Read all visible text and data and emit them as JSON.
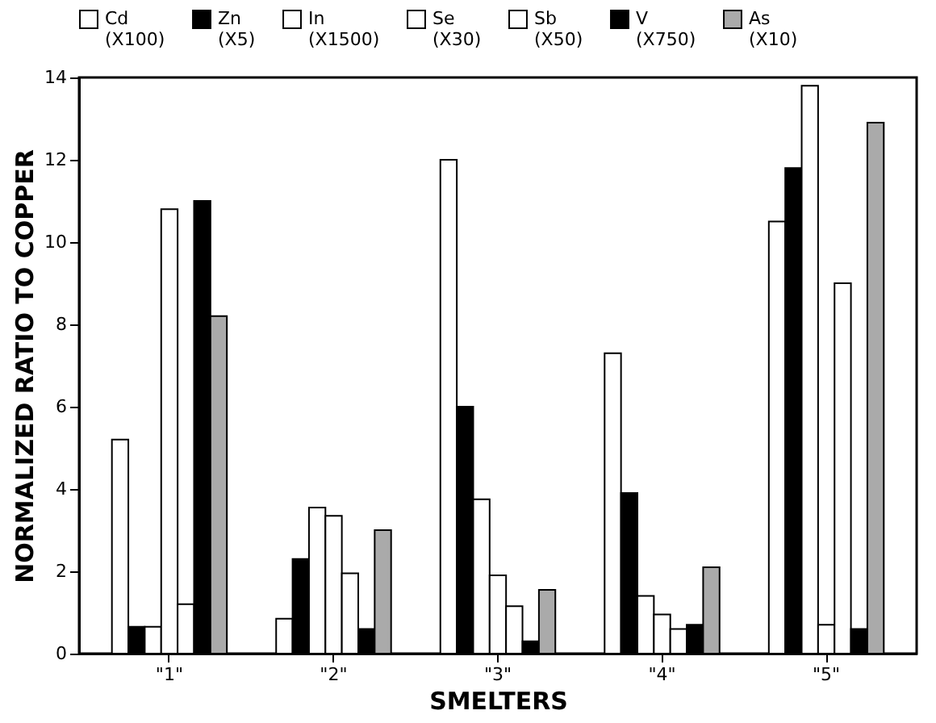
{
  "chart_data": {
    "type": "bar",
    "xlabel": "SMELTERS",
    "ylabel": "NORMALIZED RATIO TO COPPER",
    "categories": [
      "\"1\"",
      "\"2\"",
      "\"3\"",
      "\"4\"",
      "\"5\""
    ],
    "series": [
      {
        "name": "Cd (X100)",
        "color": "#ffffff",
        "values": [
          5.2,
          0.85,
          12.0,
          7.3,
          10.5
        ]
      },
      {
        "name": "Zn (X5)",
        "color": "#000000",
        "values": [
          0.65,
          2.3,
          6.0,
          3.9,
          11.8
        ]
      },
      {
        "name": "In (X1500)",
        "color": "#ffffff",
        "values": [
          0.65,
          3.55,
          3.75,
          1.4,
          13.8
        ]
      },
      {
        "name": "Se (X30)",
        "color": "#ffffff",
        "values": [
          10.8,
          3.35,
          1.9,
          0.95,
          0.7
        ]
      },
      {
        "name": "Sb (X50)",
        "color": "#ffffff",
        "values": [
          1.2,
          1.95,
          1.15,
          0.6,
          9.0
        ]
      },
      {
        "name": "V (X750)",
        "color": "#000000",
        "values": [
          11.0,
          0.6,
          0.3,
          0.7,
          0.6
        ]
      },
      {
        "name": "As (X10)",
        "color": "#aaaaaa",
        "values": [
          8.2,
          3.0,
          1.55,
          2.1,
          12.9
        ]
      }
    ],
    "ylim": [
      0,
      14
    ],
    "yticks": [
      0,
      2,
      4,
      6,
      8,
      10,
      12,
      14
    ],
    "grid": false,
    "legend": "top"
  }
}
